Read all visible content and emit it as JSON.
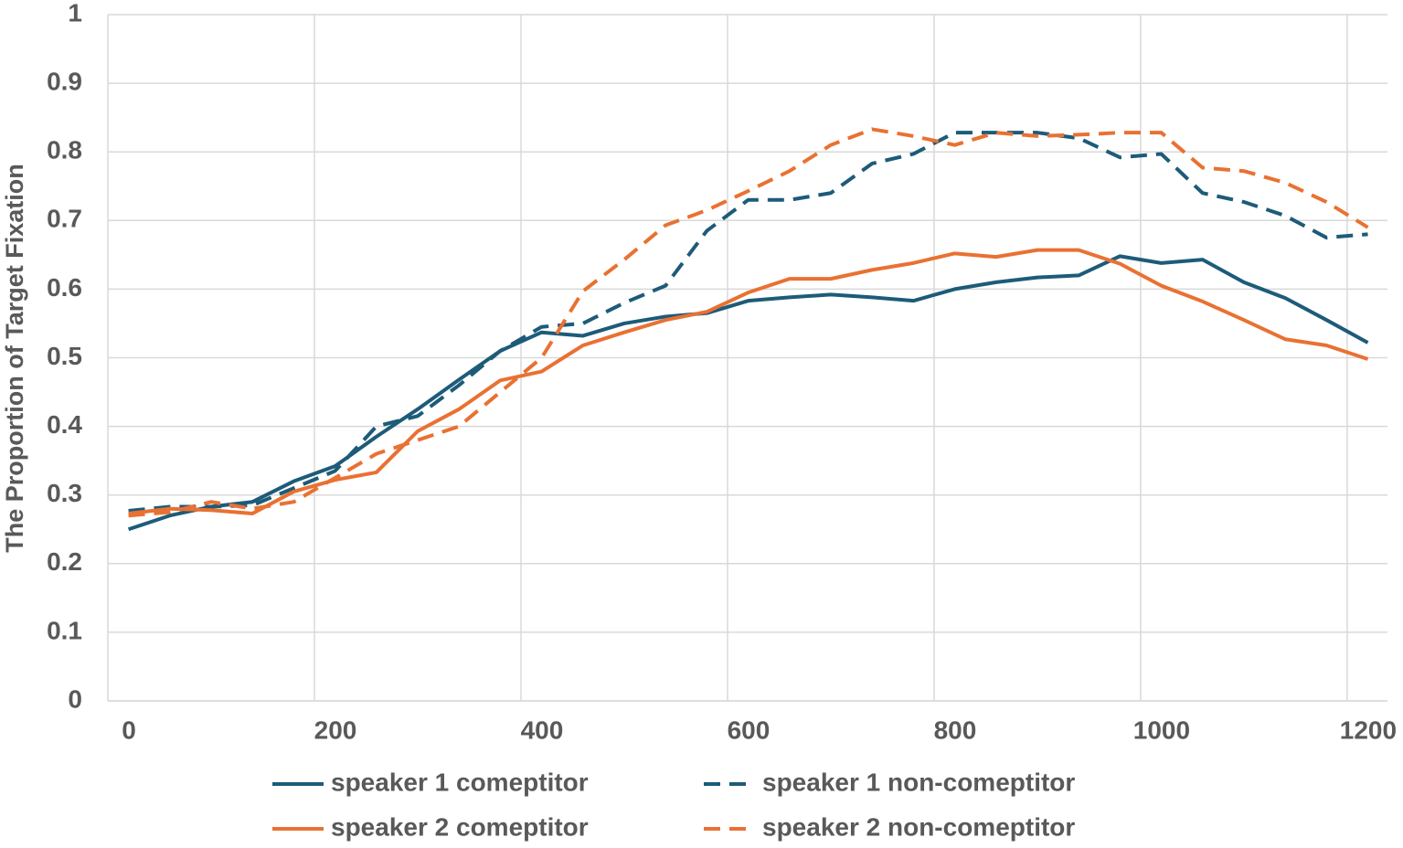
{
  "chart_data": {
    "type": "line",
    "y_label": "The Proportion of Target Fixation",
    "x": [
      20,
      60,
      100,
      140,
      180,
      220,
      260,
      300,
      340,
      380,
      420,
      460,
      500,
      540,
      580,
      620,
      660,
      700,
      740,
      780,
      820,
      860,
      900,
      940,
      980,
      1020,
      1060,
      1100,
      1140,
      1180,
      1220
    ],
    "xlim": [
      0,
      1239
    ],
    "xticks": [
      0,
      200,
      400,
      600,
      800,
      1000,
      1200
    ],
    "ylim": [
      0,
      1
    ],
    "yticks": [
      0,
      0.1,
      0.2,
      0.3,
      0.4,
      0.5,
      0.6,
      0.7,
      0.8,
      0.9,
      1
    ],
    "grid": true,
    "legend": "bottom",
    "series": [
      {
        "name": "speaker 1 comeptitor",
        "color": "#1d5b79",
        "dashed": false,
        "values": [
          0.25,
          0.27,
          0.283,
          0.29,
          0.32,
          0.342,
          0.385,
          0.425,
          0.468,
          0.51,
          0.537,
          0.532,
          0.55,
          0.56,
          0.565,
          0.583,
          0.588,
          0.592,
          0.588,
          0.583,
          0.6,
          0.61,
          0.617,
          0.62,
          0.648,
          0.638,
          0.643,
          0.61,
          0.587,
          0.555,
          0.522
        ]
      },
      {
        "name": "speaker 1 non-comeptitor",
        "color": "#1d5b79",
        "dashed": true,
        "values": [
          0.277,
          0.283,
          0.283,
          0.285,
          0.31,
          0.335,
          0.4,
          0.415,
          0.46,
          0.51,
          0.545,
          0.55,
          0.58,
          0.605,
          0.685,
          0.73,
          0.73,
          0.74,
          0.783,
          0.797,
          0.828,
          0.828,
          0.828,
          0.82,
          0.792,
          0.797,
          0.74,
          0.727,
          0.707,
          0.675,
          0.68
        ]
      },
      {
        "name": "speaker 2 comeptitor",
        "color": "#e97132",
        "dashed": false,
        "values": [
          0.273,
          0.28,
          0.278,
          0.273,
          0.305,
          0.322,
          0.333,
          0.393,
          0.425,
          0.467,
          0.48,
          0.518,
          0.537,
          0.555,
          0.567,
          0.595,
          0.615,
          0.615,
          0.628,
          0.638,
          0.652,
          0.647,
          0.657,
          0.657,
          0.637,
          0.605,
          0.582,
          0.555,
          0.527,
          0.518,
          0.498
        ]
      },
      {
        "name": "speaker 2 non-comeptitor",
        "color": "#e97132",
        "dashed": true,
        "values": [
          0.27,
          0.275,
          0.29,
          0.28,
          0.29,
          0.325,
          0.36,
          0.38,
          0.4,
          0.45,
          0.5,
          0.597,
          0.643,
          0.693,
          0.715,
          0.743,
          0.772,
          0.81,
          0.833,
          0.823,
          0.81,
          0.828,
          0.823,
          0.825,
          0.828,
          0.828,
          0.777,
          0.772,
          0.755,
          0.727,
          0.69
        ]
      }
    ]
  }
}
